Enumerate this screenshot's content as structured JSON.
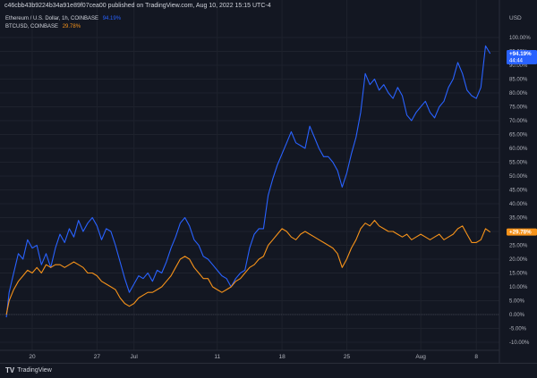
{
  "header": {
    "published_line": "c46cbb43b9224b34a91e89f07cea00 published on TradingView.com, Aug 10, 2022 15:15 UTC-4"
  },
  "legend": [
    {
      "label": "Ethereum / U.S. Dollar, 1h, COINBASE",
      "value": "94.19%",
      "color": "#2962ff"
    },
    {
      "label": "BTCUSD, COINBASE",
      "value": "29.78%",
      "color": "#f7931a"
    }
  ],
  "footer": {
    "logo_mark": "TV",
    "logo_text": "TradingView"
  },
  "chart_data": {
    "type": "line",
    "title": "",
    "ylabel": "USD",
    "ylim": [
      -12,
      108
    ],
    "yticks": [
      -10,
      -5,
      0,
      5,
      10,
      15,
      20,
      25,
      30,
      35,
      40,
      45,
      50,
      55,
      60,
      65,
      70,
      75,
      80,
      85,
      90,
      95,
      100
    ],
    "ytick_labels": [
      "-10.00%",
      "-5.00%",
      "0.00%",
      "5.00%",
      "10.00%",
      "15.00%",
      "20.00%",
      "25.00%",
      "30.00%",
      "35.00%",
      "40.00%",
      "45.00%",
      "50.00%",
      "55.00%",
      "60.00%",
      "65.00%",
      "70.00%",
      "75.00%",
      "80.00%",
      "85.00%",
      "90.00%",
      "95.00%",
      "100.00%"
    ],
    "xlim": [
      -2,
      51.5
    ],
    "xticks": [
      {
        "x": 1,
        "label": "20"
      },
      {
        "x": 8,
        "label": "27"
      },
      {
        "x": 12,
        "label": "Jul"
      },
      {
        "x": 21,
        "label": "11"
      },
      {
        "x": 28,
        "label": "18"
      },
      {
        "x": 35,
        "label": "25"
      },
      {
        "x": 43,
        "label": "Aug"
      },
      {
        "x": 49,
        "label": "8"
      }
    ],
    "baseline": 0,
    "series": [
      {
        "name": "Ethereum / U.S. Dollar, 1h, COINBASE",
        "color": "#2962ff",
        "last_label": "+94.19%",
        "countdown": "44:44",
        "points": [
          [
            -1.8,
            -1
          ],
          [
            -1.5,
            8
          ],
          [
            -1,
            15
          ],
          [
            -0.5,
            22
          ],
          [
            0,
            20
          ],
          [
            0.5,
            27
          ],
          [
            1,
            24
          ],
          [
            1.5,
            25
          ],
          [
            2,
            18
          ],
          [
            2.5,
            22
          ],
          [
            3,
            17
          ],
          [
            3.5,
            24
          ],
          [
            4,
            29
          ],
          [
            4.5,
            26
          ],
          [
            5,
            31
          ],
          [
            5.5,
            28
          ],
          [
            6,
            34
          ],
          [
            6.5,
            30
          ],
          [
            7,
            33
          ],
          [
            7.5,
            35
          ],
          [
            8,
            32
          ],
          [
            8.5,
            27
          ],
          [
            9,
            31
          ],
          [
            9.5,
            30
          ],
          [
            10,
            25
          ],
          [
            10.5,
            19
          ],
          [
            11,
            13
          ],
          [
            11.5,
            8
          ],
          [
            12,
            11
          ],
          [
            12.5,
            14
          ],
          [
            13,
            13
          ],
          [
            13.5,
            15
          ],
          [
            14,
            12
          ],
          [
            14.5,
            16
          ],
          [
            15,
            15
          ],
          [
            15.5,
            19
          ],
          [
            16,
            24
          ],
          [
            16.5,
            28
          ],
          [
            17,
            33
          ],
          [
            17.5,
            35
          ],
          [
            18,
            32
          ],
          [
            18.5,
            27
          ],
          [
            19,
            25
          ],
          [
            19.5,
            21
          ],
          [
            20,
            20
          ],
          [
            20.5,
            18
          ],
          [
            21,
            16
          ],
          [
            21.5,
            14
          ],
          [
            22,
            13
          ],
          [
            22.5,
            10
          ],
          [
            23,
            13
          ],
          [
            23.5,
            15
          ],
          [
            24,
            16
          ],
          [
            24.5,
            24
          ],
          [
            25,
            29
          ],
          [
            25.5,
            31
          ],
          [
            26,
            31
          ],
          [
            26.5,
            43
          ],
          [
            27,
            49
          ],
          [
            27.5,
            54
          ],
          [
            28,
            58
          ],
          [
            28.5,
            62
          ],
          [
            29,
            66
          ],
          [
            29.5,
            62
          ],
          [
            30,
            61
          ],
          [
            30.5,
            60
          ],
          [
            31,
            68
          ],
          [
            31.5,
            64
          ],
          [
            32,
            60
          ],
          [
            32.5,
            57
          ],
          [
            33,
            57
          ],
          [
            33.5,
            55
          ],
          [
            34,
            52
          ],
          [
            34.5,
            46
          ],
          [
            35,
            51
          ],
          [
            35.5,
            58
          ],
          [
            36,
            64
          ],
          [
            36.5,
            73
          ],
          [
            37,
            87
          ],
          [
            37.5,
            83
          ],
          [
            38,
            85
          ],
          [
            38.5,
            81
          ],
          [
            39,
            83
          ],
          [
            39.5,
            80
          ],
          [
            40,
            78
          ],
          [
            40.5,
            82
          ],
          [
            41,
            79
          ],
          [
            41.5,
            72
          ],
          [
            42,
            70
          ],
          [
            42.5,
            73
          ],
          [
            43,
            75
          ],
          [
            43.5,
            77
          ],
          [
            44,
            73
          ],
          [
            44.5,
            71
          ],
          [
            45,
            75
          ],
          [
            45.5,
            77
          ],
          [
            46,
            82
          ],
          [
            46.5,
            85
          ],
          [
            47,
            91
          ],
          [
            47.5,
            87
          ],
          [
            48,
            81
          ],
          [
            48.5,
            79
          ],
          [
            49,
            78
          ],
          [
            49.5,
            82
          ],
          [
            50,
            97
          ],
          [
            50.5,
            94.19
          ]
        ]
      },
      {
        "name": "BTCUSD, COINBASE",
        "color": "#f7931a",
        "last_label": "+29.78%",
        "points": [
          [
            -1.8,
            0
          ],
          [
            -1.5,
            5
          ],
          [
            -1,
            9
          ],
          [
            -0.5,
            12
          ],
          [
            0,
            14
          ],
          [
            0.5,
            16
          ],
          [
            1,
            15
          ],
          [
            1.5,
            17
          ],
          [
            2,
            15
          ],
          [
            2.5,
            18
          ],
          [
            3,
            17
          ],
          [
            3.5,
            18
          ],
          [
            4,
            18
          ],
          [
            4.5,
            17
          ],
          [
            5,
            18
          ],
          [
            5.5,
            19
          ],
          [
            6,
            18
          ],
          [
            6.5,
            17
          ],
          [
            7,
            15
          ],
          [
            7.5,
            15
          ],
          [
            8,
            14
          ],
          [
            8.5,
            12
          ],
          [
            9,
            11
          ],
          [
            9.5,
            10
          ],
          [
            10,
            9
          ],
          [
            10.5,
            6
          ],
          [
            11,
            4
          ],
          [
            11.5,
            3
          ],
          [
            12,
            4
          ],
          [
            12.5,
            6
          ],
          [
            13,
            7
          ],
          [
            13.5,
            8
          ],
          [
            14,
            8
          ],
          [
            14.5,
            9
          ],
          [
            15,
            10
          ],
          [
            15.5,
            12
          ],
          [
            16,
            14
          ],
          [
            16.5,
            17
          ],
          [
            17,
            20
          ],
          [
            17.5,
            21
          ],
          [
            18,
            20
          ],
          [
            18.5,
            17
          ],
          [
            19,
            15
          ],
          [
            19.5,
            13
          ],
          [
            20,
            13
          ],
          [
            20.5,
            10
          ],
          [
            21,
            9
          ],
          [
            21.5,
            8
          ],
          [
            22,
            9
          ],
          [
            22.5,
            10
          ],
          [
            23,
            12
          ],
          [
            23.5,
            13
          ],
          [
            24,
            15
          ],
          [
            24.5,
            17
          ],
          [
            25,
            18
          ],
          [
            25.5,
            20
          ],
          [
            26,
            21
          ],
          [
            26.5,
            25
          ],
          [
            27,
            27
          ],
          [
            27.5,
            29
          ],
          [
            28,
            31
          ],
          [
            28.5,
            30
          ],
          [
            29,
            28
          ],
          [
            29.5,
            27
          ],
          [
            30,
            29
          ],
          [
            30.5,
            30
          ],
          [
            31,
            29
          ],
          [
            31.5,
            28
          ],
          [
            32,
            27
          ],
          [
            32.5,
            26
          ],
          [
            33,
            25
          ],
          [
            33.5,
            24
          ],
          [
            34,
            22
          ],
          [
            34.5,
            17
          ],
          [
            35,
            20
          ],
          [
            35.5,
            24
          ],
          [
            36,
            27
          ],
          [
            36.5,
            31
          ],
          [
            37,
            33
          ],
          [
            37.5,
            32
          ],
          [
            38,
            34
          ],
          [
            38.5,
            32
          ],
          [
            39,
            31
          ],
          [
            39.5,
            30
          ],
          [
            40,
            30
          ],
          [
            40.5,
            29
          ],
          [
            41,
            28
          ],
          [
            41.5,
            29
          ],
          [
            42,
            27
          ],
          [
            42.5,
            28
          ],
          [
            43,
            29
          ],
          [
            43.5,
            28
          ],
          [
            44,
            27
          ],
          [
            44.5,
            28
          ],
          [
            45,
            29
          ],
          [
            45.5,
            27
          ],
          [
            46,
            28
          ],
          [
            46.5,
            29
          ],
          [
            47,
            31
          ],
          [
            47.5,
            32
          ],
          [
            48,
            29
          ],
          [
            48.5,
            26
          ],
          [
            49,
            26
          ],
          [
            49.5,
            27
          ],
          [
            50,
            31
          ],
          [
            50.5,
            29.78
          ]
        ]
      }
    ]
  }
}
